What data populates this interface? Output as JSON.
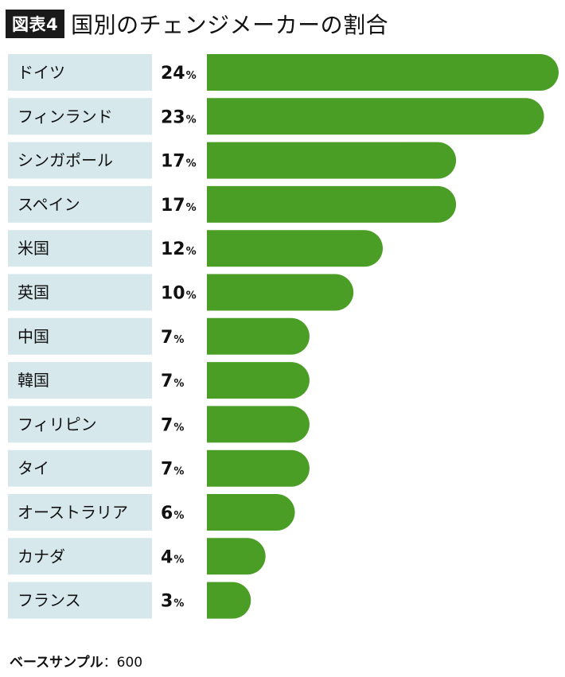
{
  "header": {
    "badge": "図表4",
    "title": "国別のチェンジメーカーの割合"
  },
  "footer": {
    "label": "ベースサンプル",
    "value": "：600"
  },
  "colors": {
    "bar": "#4a9e25",
    "label_bg": "#d6e8ec",
    "text": "#111111"
  },
  "chart_data": {
    "type": "bar",
    "orientation": "horizontal",
    "title": "国別のチェンジメーカーの割合",
    "categories": [
      "ドイツ",
      "フィンランド",
      "シンガポール",
      "スペイン",
      "米国",
      "英国",
      "中国",
      "韓国",
      "フィリピン",
      "タイ",
      "オーストラリア",
      "カナダ",
      "フランス"
    ],
    "values": [
      24,
      23,
      17,
      17,
      12,
      10,
      7,
      7,
      7,
      7,
      6,
      4,
      3
    ],
    "value_suffix": "%",
    "xlim": [
      0,
      24
    ],
    "grid": false,
    "legend": "none"
  }
}
